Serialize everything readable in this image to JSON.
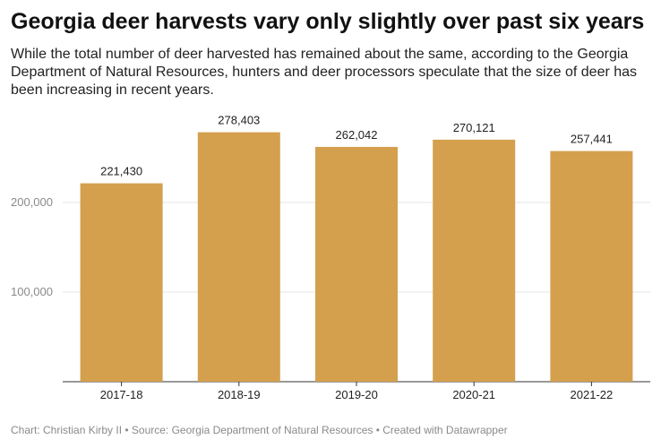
{
  "header": {
    "title": "Georgia deer harvests vary only slightly over past six years",
    "subtitle": "While the total number of deer harvested has remained about the same, according to the Georgia Department of Natural Resources, hunters and deer processors speculate that the size of deer has been increasing in recent years."
  },
  "footer": {
    "text": "Chart: Christian Kirby II • Source: Georgia Department of Natural Resources • Created with Datawrapper"
  },
  "colors": {
    "bar": "#d4a04e",
    "grid": "#e6e6e6",
    "axis": "#333333"
  },
  "chart_data": {
    "type": "bar",
    "title": "Georgia deer harvests vary only slightly over past six years",
    "xlabel": "",
    "ylabel": "",
    "categories": [
      "2017-18",
      "2018-19",
      "2019-20",
      "2020-21",
      "2021-22"
    ],
    "values": [
      221430,
      278403,
      262042,
      270121,
      257441
    ],
    "value_labels": [
      "221,430",
      "278,403",
      "262,042",
      "270,121",
      "257,441"
    ],
    "ylim": [
      0,
      300000
    ],
    "yticks": [
      100000,
      200000
    ],
    "ytick_labels": [
      "100,000",
      "200,000"
    ],
    "grid": true,
    "legend": "none"
  }
}
